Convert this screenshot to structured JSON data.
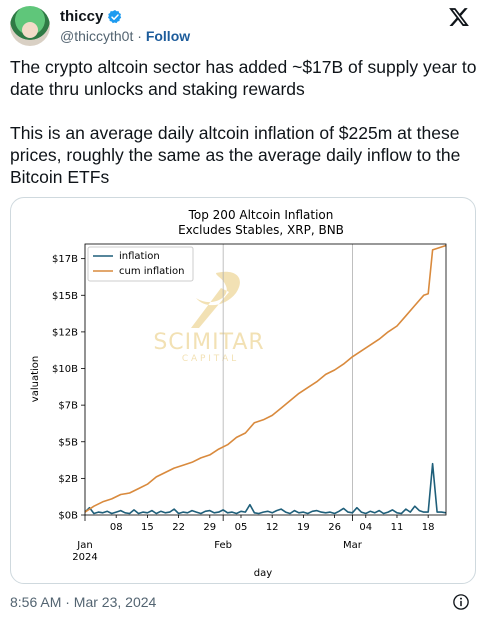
{
  "header": {
    "display_name": "thiccy",
    "handle": "@thiccyth0t",
    "separator": "·",
    "follow_label": "Follow"
  },
  "tweet": {
    "paragraph1": "The crypto altcoin sector has added ~$17B of supply year to date thru unlocks and staking rewards",
    "paragraph2": "This is an average daily altcoin inflation of $225m at these prices, roughly the same as the average daily inflow to the Bitcoin ETFs"
  },
  "footer": {
    "timestamp": "8:56 AM · Mar 23, 2024"
  },
  "watermark": {
    "line1": "SCIMITAR",
    "line2": "C A P I T A L"
  },
  "colors": {
    "inflation": "#1f5f7a",
    "cum_inflation": "#d98a3d",
    "verified": "#1d9bf0",
    "watermark": "#e9c977"
  },
  "icons": {
    "verified": "verified-badge-icon",
    "x_logo": "x-logo-icon",
    "info": "info-icon"
  },
  "chart_data": {
    "type": "line",
    "title": "Top 200 Altcoin Inflation",
    "subtitle": "Excludes Stables, XRP, BNB",
    "xlabel": "day",
    "ylabel": "valuation",
    "grid": "vertical month lines",
    "legend_placement": "top-left",
    "x_range": [
      "2024-01-01",
      "2024-03-22"
    ],
    "ylim": [
      0,
      18.5
    ],
    "y_ticks": [
      {
        "value": 0,
        "label": "$0B"
      },
      {
        "value": 2.5,
        "label": "$2B"
      },
      {
        "value": 5,
        "label": "$5B"
      },
      {
        "value": 7.5,
        "label": "$7B"
      },
      {
        "value": 10,
        "label": "$10B"
      },
      {
        "value": 12.5,
        "label": "$12B"
      },
      {
        "value": 15,
        "label": "$15B"
      },
      {
        "value": 17.5,
        "label": "$17B"
      }
    ],
    "x_day_ticks": [
      {
        "date": "2024-01-08",
        "label": "08"
      },
      {
        "date": "2024-01-15",
        "label": "15"
      },
      {
        "date": "2024-01-22",
        "label": "22"
      },
      {
        "date": "2024-01-29",
        "label": "29"
      },
      {
        "date": "2024-02-05",
        "label": "05"
      },
      {
        "date": "2024-02-12",
        "label": "12"
      },
      {
        "date": "2024-02-19",
        "label": "19"
      },
      {
        "date": "2024-02-26",
        "label": "26"
      },
      {
        "date": "2024-03-04",
        "label": "04"
      },
      {
        "date": "2024-03-11",
        "label": "11"
      },
      {
        "date": "2024-03-18",
        "label": "18"
      }
    ],
    "x_month_ticks": [
      {
        "date": "2024-01-01",
        "label": "Jan",
        "sublabel": "2024"
      },
      {
        "date": "2024-02-01",
        "label": "Feb",
        "sublabel": ""
      },
      {
        "date": "2024-03-01",
        "label": "Mar",
        "sublabel": ""
      }
    ],
    "series": [
      {
        "name": "inflation",
        "color": "#1f5f7a",
        "points": [
          [
            "2024-01-01",
            0.2
          ],
          [
            "2024-01-02",
            0.5
          ],
          [
            "2024-01-03",
            0.1
          ],
          [
            "2024-01-04",
            0.2
          ],
          [
            "2024-01-05",
            0.15
          ],
          [
            "2024-01-06",
            0.25
          ],
          [
            "2024-01-07",
            0.1
          ],
          [
            "2024-01-08",
            0.2
          ],
          [
            "2024-01-09",
            0.3
          ],
          [
            "2024-01-10",
            0.15
          ],
          [
            "2024-01-11",
            0.1
          ],
          [
            "2024-01-12",
            0.35
          ],
          [
            "2024-01-13",
            0.1
          ],
          [
            "2024-01-14",
            0.2
          ],
          [
            "2024-01-15",
            0.15
          ],
          [
            "2024-01-16",
            0.3
          ],
          [
            "2024-01-17",
            0.1
          ],
          [
            "2024-01-18",
            0.25
          ],
          [
            "2024-01-19",
            0.15
          ],
          [
            "2024-01-20",
            0.2
          ],
          [
            "2024-01-21",
            0.4
          ],
          [
            "2024-01-22",
            0.1
          ],
          [
            "2024-01-23",
            0.2
          ],
          [
            "2024-01-24",
            0.15
          ],
          [
            "2024-01-25",
            0.3
          ],
          [
            "2024-01-26",
            0.2
          ],
          [
            "2024-01-27",
            0.1
          ],
          [
            "2024-01-28",
            0.25
          ],
          [
            "2024-01-29",
            0.3
          ],
          [
            "2024-01-30",
            0.15
          ],
          [
            "2024-01-31",
            0.2
          ],
          [
            "2024-02-01",
            0.35
          ],
          [
            "2024-02-02",
            0.15
          ],
          [
            "2024-02-03",
            0.2
          ],
          [
            "2024-02-04",
            0.1
          ],
          [
            "2024-02-05",
            0.25
          ],
          [
            "2024-02-06",
            0.2
          ],
          [
            "2024-02-07",
            0.7
          ],
          [
            "2024-02-08",
            0.15
          ],
          [
            "2024-02-09",
            0.1
          ],
          [
            "2024-02-10",
            0.2
          ],
          [
            "2024-02-11",
            0.25
          ],
          [
            "2024-02-12",
            0.15
          ],
          [
            "2024-02-13",
            0.3
          ],
          [
            "2024-02-14",
            0.4
          ],
          [
            "2024-02-15",
            0.2
          ],
          [
            "2024-02-16",
            0.1
          ],
          [
            "2024-02-17",
            0.3
          ],
          [
            "2024-02-18",
            0.15
          ],
          [
            "2024-02-19",
            0.2
          ],
          [
            "2024-02-20",
            0.1
          ],
          [
            "2024-02-21",
            0.25
          ],
          [
            "2024-02-22",
            0.3
          ],
          [
            "2024-02-23",
            0.2
          ],
          [
            "2024-02-24",
            0.15
          ],
          [
            "2024-02-25",
            0.2
          ],
          [
            "2024-02-26",
            0.1
          ],
          [
            "2024-02-27",
            0.25
          ],
          [
            "2024-02-28",
            0.45
          ],
          [
            "2024-02-29",
            0.2
          ],
          [
            "2024-03-01",
            0.15
          ],
          [
            "2024-03-02",
            0.5
          ],
          [
            "2024-03-03",
            0.2
          ],
          [
            "2024-03-04",
            0.1
          ],
          [
            "2024-03-05",
            0.25
          ],
          [
            "2024-03-06",
            0.15
          ],
          [
            "2024-03-07",
            0.3
          ],
          [
            "2024-03-08",
            0.1
          ],
          [
            "2024-03-09",
            0.2
          ],
          [
            "2024-03-10",
            0.35
          ],
          [
            "2024-03-11",
            0.15
          ],
          [
            "2024-03-12",
            0.1
          ],
          [
            "2024-03-13",
            0.4
          ],
          [
            "2024-03-14",
            0.2
          ],
          [
            "2024-03-15",
            0.6
          ],
          [
            "2024-03-16",
            0.3
          ],
          [
            "2024-03-17",
            0.2
          ],
          [
            "2024-03-18",
            0.2
          ],
          [
            "2024-03-19",
            3.5
          ],
          [
            "2024-03-20",
            0.2
          ],
          [
            "2024-03-21",
            0.2
          ],
          [
            "2024-03-22",
            0.15
          ]
        ]
      },
      {
        "name": "cum inflation",
        "color": "#d98a3d",
        "points": [
          [
            "2024-01-01",
            0.2
          ],
          [
            "2024-01-03",
            0.6
          ],
          [
            "2024-01-05",
            0.9
          ],
          [
            "2024-01-07",
            1.1
          ],
          [
            "2024-01-09",
            1.4
          ],
          [
            "2024-01-11",
            1.5
          ],
          [
            "2024-01-13",
            1.8
          ],
          [
            "2024-01-15",
            2.1
          ],
          [
            "2024-01-17",
            2.6
          ],
          [
            "2024-01-19",
            2.9
          ],
          [
            "2024-01-21",
            3.2
          ],
          [
            "2024-01-23",
            3.4
          ],
          [
            "2024-01-25",
            3.6
          ],
          [
            "2024-01-27",
            3.9
          ],
          [
            "2024-01-29",
            4.1
          ],
          [
            "2024-01-31",
            4.5
          ],
          [
            "2024-02-02",
            4.8
          ],
          [
            "2024-02-04",
            5.3
          ],
          [
            "2024-02-06",
            5.6
          ],
          [
            "2024-02-08",
            6.3
          ],
          [
            "2024-02-10",
            6.5
          ],
          [
            "2024-02-12",
            6.8
          ],
          [
            "2024-02-14",
            7.3
          ],
          [
            "2024-02-16",
            7.8
          ],
          [
            "2024-02-18",
            8.3
          ],
          [
            "2024-02-20",
            8.7
          ],
          [
            "2024-02-22",
            9.1
          ],
          [
            "2024-02-24",
            9.6
          ],
          [
            "2024-02-26",
            9.9
          ],
          [
            "2024-02-28",
            10.3
          ],
          [
            "2024-03-01",
            10.8
          ],
          [
            "2024-03-03",
            11.2
          ],
          [
            "2024-03-05",
            11.6
          ],
          [
            "2024-03-07",
            12.0
          ],
          [
            "2024-03-09",
            12.5
          ],
          [
            "2024-03-11",
            12.9
          ],
          [
            "2024-03-13",
            13.6
          ],
          [
            "2024-03-15",
            14.3
          ],
          [
            "2024-03-17",
            15.0
          ],
          [
            "2024-03-18",
            15.1
          ],
          [
            "2024-03-19",
            18.1
          ],
          [
            "2024-03-22",
            18.4
          ]
        ]
      }
    ]
  }
}
